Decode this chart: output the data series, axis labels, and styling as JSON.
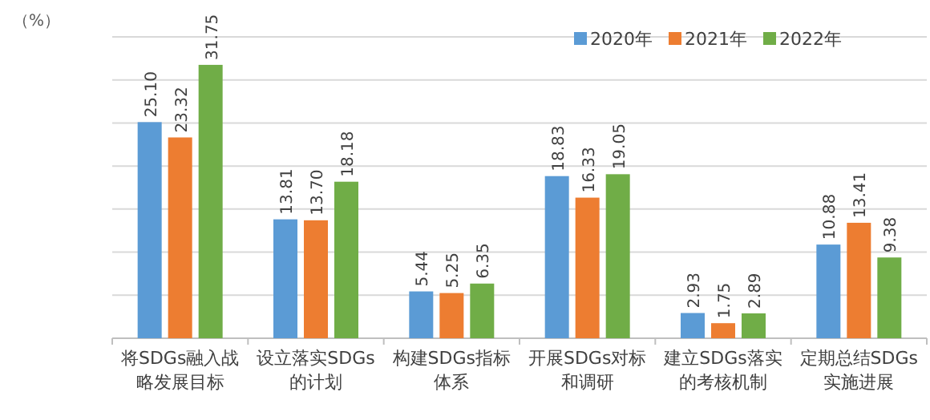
{
  "chart_data": {
    "type": "bar",
    "ylabel": "（%）",
    "categories": [
      "将SDGs融入战略发展目标",
      "设立落实SDGs的计划",
      "构建SDGs指标体系",
      "开展SDGs对标和调研",
      "建立SDGs落实的考核机制",
      "定期总结SDGs实施进展"
    ],
    "series": [
      {
        "name": "2020年",
        "color": "#5b9bd5",
        "values": [
          25.1,
          13.81,
          5.44,
          18.83,
          2.93,
          10.88
        ],
        "value_labels": [
          "25.10",
          "13.81",
          "5.44",
          "18.83",
          "2.93",
          "10.88"
        ]
      },
      {
        "name": "2021年",
        "color": "#ed7d31",
        "values": [
          23.32,
          13.7,
          5.25,
          16.33,
          1.75,
          13.41
        ],
        "value_labels": [
          "23.32",
          "13.70",
          "5.25",
          "16.33",
          "1.75",
          "13.41"
        ]
      },
      {
        "name": "2022年",
        "color": "#70ad47",
        "values": [
          31.75,
          18.18,
          6.35,
          19.05,
          2.89,
          9.38
        ],
        "value_labels": [
          "31.75",
          "18.18",
          "6.35",
          "19.05",
          "2.89",
          "9.38"
        ]
      }
    ],
    "ylim": [
      0,
      35
    ],
    "yticks": [
      {
        "value": 0,
        "label": null
      },
      {
        "value": 5,
        "label": null
      },
      {
        "value": 10,
        "label": null
      },
      {
        "value": 15,
        "label": null
      },
      {
        "value": 20,
        "label": null
      },
      {
        "value": 25,
        "label": null
      },
      {
        "value": 30,
        "label": null
      },
      {
        "value": 35,
        "label": null
      }
    ],
    "tick_labels": "x",
    "grid": "y",
    "legend": "top right"
  }
}
